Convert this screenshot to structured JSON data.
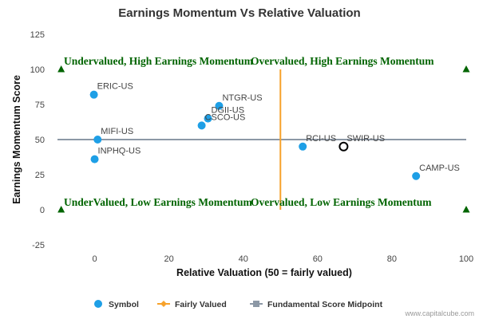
{
  "chart_data": {
    "type": "scatter",
    "title": "Earnings Momentum Vs Relative Valuation",
    "xlabel": "Relative Valuation (50 = fairly valued)",
    "ylabel": "Earnings Momentum Score",
    "xlim": [
      -10,
      100
    ],
    "ylim": [
      -25,
      125
    ],
    "x_ticks": [
      0,
      20,
      40,
      60,
      80,
      100
    ],
    "y_ticks": [
      -25,
      0,
      25,
      50,
      75,
      100,
      125
    ],
    "grid": false,
    "legend_position": "bottom",
    "points": [
      {
        "label": "ERIC-US",
        "x": -0.2,
        "y": 82,
        "highlight": false
      },
      {
        "label": "NTGR-US",
        "x": 33.5,
        "y": 74,
        "highlight": false
      },
      {
        "label": "DGII-US",
        "x": 30.5,
        "y": 65,
        "highlight": false
      },
      {
        "label": "CSCO-US",
        "x": 28.8,
        "y": 60,
        "highlight": false
      },
      {
        "label": "MIFI-US",
        "x": 0.8,
        "y": 50,
        "highlight": false
      },
      {
        "label": "INPHQ-US",
        "x": 0,
        "y": 36,
        "highlight": false
      },
      {
        "label": "RCI-US",
        "x": 56,
        "y": 45,
        "highlight": false
      },
      {
        "label": "SWIR-US",
        "x": 67,
        "y": 45,
        "highlight": true
      },
      {
        "label": "CAMP-US",
        "x": 86.5,
        "y": 24,
        "highlight": false
      }
    ],
    "fairly_valued_x": 50,
    "midpoint_y": 50,
    "quadrant_labels": {
      "top_left": "Undervalued, High Earnings Momentum",
      "top_right": "Overvalued, High Earnings Momentum",
      "bottom_left": "UnderValued, Low Earnings Momentum",
      "bottom_right": "Overvalued, Low Earnings Momentum"
    },
    "corner_markers": [
      {
        "x": -9,
        "y": 100
      },
      {
        "x": 100,
        "y": 100
      },
      {
        "x": -9,
        "y": 0
      },
      {
        "x": 100,
        "y": 0
      }
    ],
    "legend": [
      {
        "name": "Symbol",
        "marker": "circle"
      },
      {
        "name": "Fairly Valued",
        "marker": "diamond-line"
      },
      {
        "name": "Fundamental Score Midpoint",
        "marker": "square-line"
      }
    ],
    "colors": {
      "point": "#1e9fe6",
      "fairly_valued": "#f7a22b",
      "midpoint": "#8c98a6",
      "quadrant_text": "#006400",
      "marker": "#006400"
    }
  },
  "credit": "www.capitalcube.com"
}
